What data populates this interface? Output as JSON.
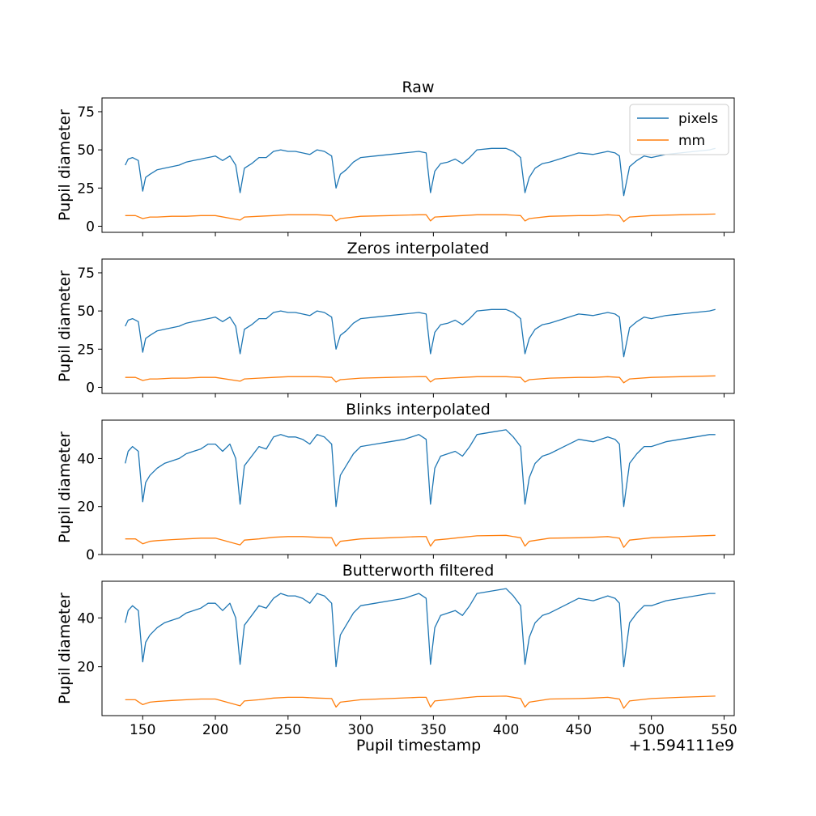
{
  "figure": {
    "xlabel": "Pupil timestamp",
    "x_offset_label": "+1.594111e9",
    "ylabel": "Pupil diameter",
    "x_ticks": [
      150,
      200,
      250,
      300,
      350,
      400,
      450,
      500,
      550
    ],
    "xlim": [
      122,
      557
    ]
  },
  "colors": {
    "pixels": "#1f77b4",
    "mm": "#ff7f0e"
  },
  "legend": {
    "entries": [
      "pixels",
      "mm"
    ],
    "location": "upper right of first panel"
  },
  "chart_data": [
    {
      "type": "line",
      "title": "Raw",
      "ylim": [
        -4,
        84
      ],
      "y_ticks": [
        0,
        25,
        50,
        75
      ],
      "legend": true,
      "series": [
        {
          "name": "pixels",
          "x": [
            138,
            140,
            143,
            147,
            150,
            152,
            155,
            160,
            165,
            170,
            175,
            180,
            185,
            190,
            195,
            200,
            205,
            210,
            214,
            217,
            220,
            225,
            230,
            235,
            240,
            245,
            250,
            255,
            260,
            265,
            270,
            275,
            280,
            283,
            286,
            290,
            295,
            300,
            310,
            320,
            330,
            340,
            345,
            348,
            351,
            355,
            360,
            365,
            370,
            375,
            380,
            390,
            400,
            405,
            410,
            413,
            416,
            420,
            425,
            430,
            440,
            450,
            460,
            470,
            475,
            478,
            481,
            485,
            490,
            495,
            500,
            510,
            520,
            530,
            540,
            544
          ],
          "y": [
            40,
            44,
            45,
            43,
            23,
            32,
            34,
            37,
            38,
            39,
            40,
            42,
            43,
            44,
            45,
            46,
            43,
            46,
            40,
            22,
            38,
            41,
            45,
            45,
            49,
            50,
            49,
            49,
            48,
            47,
            50,
            49,
            46,
            25,
            34,
            37,
            42,
            45,
            46,
            47,
            48,
            49,
            48,
            22,
            36,
            41,
            42,
            44,
            41,
            45,
            50,
            51,
            51,
            49,
            45,
            22,
            32,
            38,
            41,
            42,
            45,
            48,
            47,
            49,
            48,
            46,
            20,
            39,
            43,
            46,
            45,
            47,
            48,
            49,
            50,
            51
          ]
        },
        {
          "name": "mm",
          "x": [
            138,
            145,
            150,
            155,
            160,
            170,
            180,
            190,
            195,
            200,
            217,
            220,
            230,
            240,
            250,
            260,
            270,
            280,
            283,
            286,
            300,
            320,
            340,
            345,
            348,
            351,
            360,
            370,
            380,
            400,
            410,
            413,
            416,
            430,
            450,
            460,
            470,
            478,
            481,
            485,
            500,
            520,
            544
          ],
          "y": [
            7,
            7,
            5,
            6,
            6,
            6.5,
            6.5,
            7,
            7,
            7,
            4,
            6,
            6.5,
            7,
            7.5,
            7.5,
            7.5,
            7,
            3.5,
            5,
            6.5,
            7,
            7.5,
            7.5,
            3.5,
            6,
            6.5,
            7,
            7.5,
            7.5,
            7,
            3.5,
            5,
            6.5,
            7,
            7,
            7.5,
            7,
            3,
            6,
            7,
            7.5,
            8
          ]
        }
      ]
    },
    {
      "type": "line",
      "title": "Zeros interpolated",
      "ylim": [
        -4,
        84
      ],
      "y_ticks": [
        0,
        25,
        50,
        75
      ],
      "series": [
        {
          "name": "pixels",
          "x": [
            138,
            140,
            143,
            147,
            150,
            152,
            155,
            160,
            165,
            170,
            175,
            180,
            185,
            190,
            195,
            200,
            205,
            210,
            214,
            217,
            220,
            225,
            230,
            235,
            240,
            245,
            250,
            255,
            260,
            265,
            270,
            275,
            280,
            283,
            286,
            290,
            295,
            300,
            310,
            320,
            330,
            340,
            345,
            348,
            351,
            355,
            360,
            365,
            370,
            375,
            380,
            390,
            400,
            405,
            410,
            413,
            416,
            420,
            425,
            430,
            440,
            450,
            460,
            470,
            475,
            478,
            481,
            485,
            490,
            495,
            500,
            510,
            520,
            530,
            540,
            544
          ],
          "y": [
            40,
            44,
            45,
            43,
            23,
            32,
            34,
            37,
            38,
            39,
            40,
            42,
            43,
            44,
            45,
            46,
            43,
            46,
            40,
            22,
            38,
            41,
            45,
            45,
            49,
            50,
            49,
            49,
            48,
            47,
            50,
            49,
            46,
            25,
            34,
            37,
            42,
            45,
            46,
            47,
            48,
            49,
            48,
            22,
            36,
            41,
            42,
            44,
            41,
            45,
            50,
            51,
            51,
            49,
            45,
            22,
            32,
            38,
            41,
            42,
            45,
            48,
            47,
            49,
            48,
            46,
            20,
            39,
            43,
            46,
            45,
            47,
            48,
            49,
            50,
            51
          ]
        },
        {
          "name": "mm",
          "x": [
            138,
            145,
            150,
            155,
            160,
            170,
            180,
            190,
            195,
            200,
            217,
            220,
            230,
            240,
            250,
            260,
            270,
            280,
            283,
            286,
            300,
            320,
            340,
            345,
            348,
            351,
            360,
            370,
            380,
            400,
            410,
            413,
            416,
            430,
            450,
            460,
            470,
            478,
            481,
            485,
            500,
            520,
            544
          ],
          "y": [
            6.5,
            6.5,
            4.5,
            5.5,
            5.5,
            6,
            6,
            6.5,
            6.5,
            6.5,
            4,
            5.5,
            6,
            6.5,
            7,
            7,
            7,
            6.5,
            3.5,
            5,
            6,
            6.5,
            7,
            7,
            3.5,
            5.5,
            6,
            6.5,
            7,
            7,
            6.5,
            3.5,
            5,
            6,
            6.5,
            6.5,
            7,
            6.5,
            3,
            5.5,
            6.5,
            7,
            7.5
          ]
        }
      ]
    },
    {
      "type": "line",
      "title": "Blinks interpolated",
      "ylim": [
        0,
        56
      ],
      "y_ticks": [
        0,
        20,
        40
      ],
      "series": [
        {
          "name": "pixels",
          "x": [
            138,
            140,
            143,
            147,
            150,
            152,
            155,
            160,
            165,
            170,
            175,
            180,
            185,
            190,
            195,
            200,
            205,
            210,
            214,
            217,
            220,
            225,
            230,
            235,
            240,
            245,
            250,
            255,
            260,
            265,
            270,
            275,
            280,
            283,
            286,
            290,
            295,
            300,
            310,
            320,
            330,
            340,
            345,
            348,
            351,
            355,
            360,
            365,
            370,
            375,
            380,
            390,
            400,
            405,
            410,
            413,
            416,
            420,
            425,
            430,
            440,
            450,
            460,
            470,
            475,
            478,
            481,
            485,
            490,
            495,
            500,
            510,
            520,
            530,
            540,
            544
          ],
          "y": [
            38,
            43,
            45,
            43,
            22,
            30,
            33,
            36,
            38,
            39,
            40,
            42,
            43,
            44,
            46,
            46,
            43,
            46,
            40,
            21,
            37,
            41,
            45,
            44,
            49,
            50,
            49,
            49,
            48,
            46,
            50,
            49,
            46,
            20,
            33,
            37,
            42,
            45,
            46,
            47,
            48,
            50,
            48,
            21,
            36,
            41,
            42,
            43,
            41,
            45,
            50,
            51,
            52,
            49,
            45,
            21,
            32,
            38,
            41,
            42,
            45,
            48,
            47,
            49,
            48,
            46,
            20,
            38,
            42,
            45,
            45,
            47,
            48,
            49,
            50,
            50
          ]
        },
        {
          "name": "mm",
          "x": [
            138,
            145,
            150,
            155,
            160,
            170,
            180,
            190,
            200,
            217,
            220,
            230,
            240,
            250,
            260,
            270,
            280,
            283,
            286,
            300,
            320,
            340,
            345,
            348,
            351,
            360,
            370,
            380,
            400,
            410,
            413,
            416,
            430,
            450,
            460,
            470,
            478,
            481,
            485,
            500,
            520,
            544
          ],
          "y": [
            6.5,
            6.5,
            4.5,
            5.5,
            5.8,
            6.2,
            6.5,
            6.8,
            6.8,
            4,
            6,
            6.5,
            7.2,
            7.5,
            7.5,
            7.2,
            7,
            3.5,
            5.5,
            6.5,
            7,
            7.5,
            7.5,
            3.5,
            6,
            6.5,
            7.2,
            7.8,
            8,
            7,
            3.5,
            5.5,
            6.8,
            7,
            7.2,
            7.5,
            6.8,
            3,
            6,
            7,
            7.5,
            8
          ]
        }
      ]
    },
    {
      "type": "line",
      "title": "Butterworth filtered",
      "ylim": [
        0,
        55
      ],
      "y_ticks": [
        20,
        40
      ],
      "series": [
        {
          "name": "pixels",
          "x": [
            138,
            140,
            143,
            147,
            150,
            152,
            155,
            160,
            165,
            170,
            175,
            180,
            185,
            190,
            195,
            200,
            205,
            210,
            214,
            217,
            220,
            225,
            230,
            235,
            240,
            245,
            250,
            255,
            260,
            265,
            270,
            275,
            280,
            283,
            286,
            290,
            295,
            300,
            310,
            320,
            330,
            340,
            345,
            348,
            351,
            355,
            360,
            365,
            370,
            375,
            380,
            390,
            400,
            405,
            410,
            413,
            416,
            420,
            425,
            430,
            440,
            450,
            460,
            470,
            475,
            478,
            481,
            485,
            490,
            495,
            500,
            510,
            520,
            530,
            540,
            544
          ],
          "y": [
            38,
            43,
            45,
            43,
            22,
            30,
            33,
            36,
            38,
            39,
            40,
            42,
            43,
            44,
            46,
            46,
            43,
            46,
            40,
            21,
            37,
            41,
            45,
            44,
            48,
            50,
            49,
            49,
            48,
            46,
            50,
            49,
            46,
            20,
            33,
            37,
            42,
            45,
            46,
            47,
            48,
            50,
            48,
            21,
            36,
            41,
            42,
            43,
            41,
            45,
            50,
            51,
            52,
            49,
            45,
            21,
            32,
            38,
            41,
            42,
            45,
            48,
            47,
            49,
            48,
            46,
            20,
            38,
            42,
            45,
            45,
            47,
            48,
            49,
            50,
            50
          ]
        },
        {
          "name": "mm",
          "x": [
            138,
            145,
            150,
            155,
            160,
            170,
            180,
            190,
            200,
            217,
            220,
            230,
            240,
            250,
            260,
            270,
            280,
            283,
            286,
            300,
            320,
            340,
            345,
            348,
            351,
            360,
            370,
            380,
            400,
            410,
            413,
            416,
            430,
            450,
            460,
            470,
            478,
            481,
            485,
            500,
            520,
            544
          ],
          "y": [
            6.5,
            6.5,
            4.5,
            5.5,
            5.8,
            6.2,
            6.5,
            6.8,
            6.8,
            4,
            6,
            6.5,
            7.2,
            7.5,
            7.5,
            7.2,
            7,
            3.5,
            5.5,
            6.5,
            7,
            7.5,
            7.5,
            3.5,
            6,
            6.5,
            7.2,
            7.8,
            8,
            7,
            3.5,
            5.5,
            6.8,
            7,
            7.2,
            7.5,
            6.8,
            3,
            6,
            7,
            7.5,
            8
          ]
        }
      ]
    }
  ]
}
